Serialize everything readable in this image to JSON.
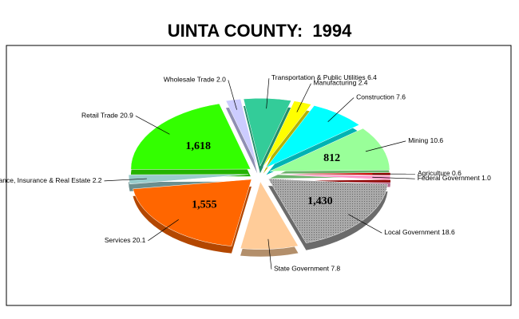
{
  "chart_data": {
    "type": "pie",
    "title": "UINTA COUNTY:  1994",
    "categories": [
      "Transportation & Public Utilities",
      "Manufacturing",
      "Construction",
      "Mining",
      "Agriculture",
      "Federal Government",
      "Local Government",
      "State Government",
      "Services",
      "Finance, Insurance & Real Estate",
      "Retail Trade",
      "Wholesale Trade"
    ],
    "values": [
      6.4,
      2.4,
      7.6,
      10.6,
      0.6,
      1.0,
      18.6,
      7.8,
      20.1,
      2.2,
      20.9,
      2.0
    ],
    "value_labels": [
      "6.4",
      "2.4",
      "7.6",
      "10.6",
      "0.6",
      "1.0",
      "18.6",
      "7.8",
      "20.1",
      "2.2",
      "20.9",
      "2.0"
    ],
    "colors": [
      "#33cc99",
      "#ffff00",
      "#00ffff",
      "#99ff99",
      "#cc0000",
      "#ff99cc",
      "#999999",
      "#ffcc99",
      "#ff6600",
      "#99cccc",
      "#33ff00",
      "#ccccff"
    ],
    "counts": [
      null,
      null,
      null,
      812,
      null,
      null,
      1430,
      null,
      1555,
      null,
      1618,
      null
    ],
    "count_labels": [
      null,
      null,
      null,
      "812",
      null,
      null,
      "1,430",
      null,
      "1,555",
      null,
      "1,618",
      null
    ]
  }
}
